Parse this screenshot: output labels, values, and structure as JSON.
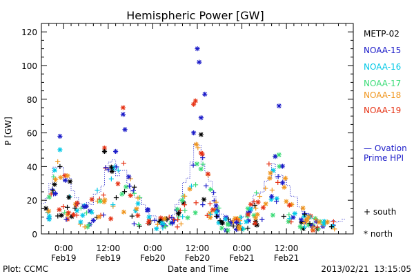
{
  "chart_data": {
    "type": "scatter",
    "title": "Hemispheric Power [GW]",
    "ylabel": "P [GW]",
    "xlabel": "Date and Time",
    "ylim": [
      0,
      125
    ],
    "yticks": [
      0,
      20,
      40,
      60,
      80,
      100,
      120
    ],
    "xlim": [
      -6,
      78
    ],
    "x_units": "hours from 2013/02/19 00:00 UT",
    "xticks": [
      {
        "x": 0,
        "time": "0:00",
        "date": "Feb19"
      },
      {
        "x": 12,
        "time": "12:00",
        "date": "Feb19"
      },
      {
        "x": 24,
        "time": "0:00",
        "date": "Feb20"
      },
      {
        "x": 36,
        "time": "12:00",
        "date": "Feb20"
      },
      {
        "x": 48,
        "time": "0:00",
        "date": "Feb21"
      },
      {
        "x": 60,
        "time": "12:00",
        "date": "Feb21"
      }
    ],
    "grid": false,
    "legend_position": "right",
    "series": [
      {
        "name": "METP-02",
        "color": "#000000"
      },
      {
        "name": "NOAA-15",
        "color": "#1a1ac8"
      },
      {
        "name": "NOAA-16",
        "color": "#00c8e6"
      },
      {
        "name": "NOAA-17",
        "color": "#3cdc78"
      },
      {
        "name": "NOAA-18",
        "color": "#f0961e"
      },
      {
        "name": "NOAA-19",
        "color": "#e63214"
      }
    ],
    "ovation_line": {
      "color": "#1a1ac8",
      "style": "dotted-step"
    },
    "highlighted_points": [
      {
        "series": "NOAA-15",
        "x": 36,
        "y": 110
      },
      {
        "series": "NOAA-15",
        "x": 36.5,
        "y": 102
      },
      {
        "series": "NOAA-15",
        "x": 38,
        "y": 83
      },
      {
        "series": "NOAA-19",
        "x": 35.5,
        "y": 79
      },
      {
        "series": "NOAA-19",
        "x": 35,
        "y": 77
      },
      {
        "series": "NOAA-15",
        "x": 37,
        "y": 69
      },
      {
        "series": "NOAA-15",
        "x": 35,
        "y": 60
      },
      {
        "series": "METP-02",
        "x": 37,
        "y": 59
      },
      {
        "series": "NOAA-15",
        "x": 58,
        "y": 76
      },
      {
        "series": "NOAA-15",
        "x": 16,
        "y": 71
      },
      {
        "series": "NOAA-19",
        "x": 16,
        "y": 75
      },
      {
        "series": "NOAA-15",
        "x": 16.5,
        "y": 62
      },
      {
        "series": "NOAA-15",
        "x": -1,
        "y": 58
      },
      {
        "series": "NOAA-16",
        "x": -1,
        "y": 50
      },
      {
        "series": "NOAA-19",
        "x": 11,
        "y": 51
      },
      {
        "series": "METP-02",
        "x": 11,
        "y": 49
      },
      {
        "series": "NOAA-15",
        "x": 14,
        "y": 49
      },
      {
        "series": "NOAA-19",
        "x": 37,
        "y": 48
      },
      {
        "series": "NOAA-15",
        "x": 57,
        "y": 46
      },
      {
        "series": "NOAA-17",
        "x": 58,
        "y": 47
      },
      {
        "series": "METP-02",
        "x": -1,
        "y": 40
      }
    ]
  },
  "legend": {
    "entries": [
      "METP-02",
      "NOAA-15",
      "NOAA-16",
      "NOAA-17",
      "NOAA-18",
      "NOAA-19"
    ],
    "ovation_line1": "— Ovation",
    "ovation_line2": "Prime HPI",
    "south": "+ south",
    "north": "* north"
  },
  "footer": {
    "plot_credit": "Plot: CCMC",
    "axis_label": "Date and Time",
    "timestamp": "2013/02/21  13:15:05"
  }
}
